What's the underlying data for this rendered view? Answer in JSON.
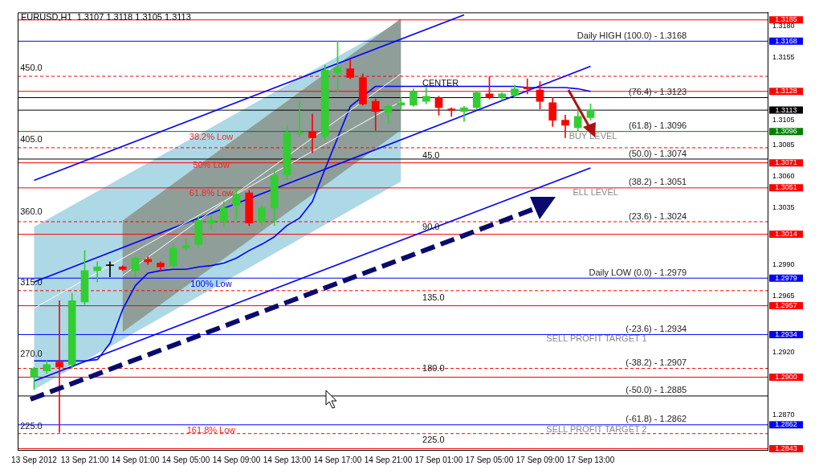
{
  "chart_data": {
    "type": "candlestick",
    "title": "EURUSD,H1  1.3107 1.3118 1.3105 1.3113",
    "categories": [
      "13 Sep 2012",
      null,
      null,
      null,
      "13 Sep 21:00",
      null,
      null,
      null,
      "14 Sep 01:00",
      null,
      null,
      null,
      "14 Sep 05:00",
      null,
      null,
      null,
      "14 Sep 09:00",
      null,
      null,
      null,
      "14 Sep 13:00",
      null,
      null,
      null,
      "14 Sep 17:00",
      null,
      null,
      null,
      "14 Sep 21:00",
      null,
      null,
      null,
      "17 Sep 01:00",
      null,
      null,
      null,
      "17 Sep 05:00",
      null,
      null,
      null,
      "17 Sep 09:00",
      null,
      null,
      null,
      "17 Sep 13:00"
    ],
    "ohlc": [
      [
        1.29,
        1.2908,
        1.289,
        1.2907
      ],
      [
        1.2905,
        1.2913,
        1.2903,
        1.291
      ],
      [
        1.2912,
        1.2961,
        1.2856,
        1.2908
      ],
      [
        1.291,
        1.2967,
        1.2907,
        1.2961
      ],
      [
        1.296,
        1.3001,
        1.2958,
        1.2985
      ],
      [
        1.2985,
        1.2992,
        1.2976,
        1.2988
      ],
      [
        1.2989,
        1.2992,
        1.298,
        1.2989
      ],
      [
        1.2988,
        1.2989,
        1.2985,
        1.2986
      ],
      [
        1.2985,
        1.2996,
        1.298,
        1.2995
      ],
      [
        1.2994,
        1.2996,
        1.299,
        1.2992
      ],
      [
        1.2991,
        1.2992,
        1.2985,
        1.2988
      ],
      [
        1.2989,
        1.3006,
        1.2988,
        1.3003
      ],
      [
        1.3003,
        1.301,
        1.3001,
        1.3005
      ],
      [
        1.3006,
        1.3028,
        1.3004,
        1.3025
      ],
      [
        1.3023,
        1.303,
        1.3018,
        1.3025
      ],
      [
        1.3024,
        1.304,
        1.302,
        1.3035
      ],
      [
        1.3037,
        1.3051,
        1.3026,
        1.3046
      ],
      [
        1.3047,
        1.3049,
        1.3021,
        1.3023
      ],
      [
        1.3024,
        1.3037,
        1.3021,
        1.3035
      ],
      [
        1.3035,
        1.3066,
        1.3021,
        1.3061
      ],
      [
        1.3061,
        1.3101,
        1.3057,
        1.3095
      ],
      [
        1.3094,
        1.312,
        1.3092,
        1.3095
      ],
      [
        1.3096,
        1.311,
        1.3079,
        1.3091
      ],
      [
        1.3092,
        1.3149,
        1.3089,
        1.3145
      ],
      [
        1.3143,
        1.3168,
        1.3128,
        1.3147
      ],
      [
        1.3146,
        1.3153,
        1.3138,
        1.3139
      ],
      [
        1.3139,
        1.3142,
        1.3117,
        1.3118
      ],
      [
        1.312,
        1.3122,
        1.3097,
        1.3112
      ],
      [
        1.3111,
        1.3117,
        1.3102,
        1.3116
      ],
      [
        1.3117,
        1.3123,
        1.3113,
        1.3119
      ],
      [
        1.3117,
        1.313,
        1.3116,
        1.3128
      ],
      [
        1.312,
        1.3131,
        1.3118,
        1.3124
      ],
      [
        1.3123,
        1.3124,
        1.3109,
        1.3115
      ],
      [
        1.3114,
        1.3115,
        1.3108,
        1.3113
      ],
      [
        1.3112,
        1.3116,
        1.3104,
        1.3115
      ],
      [
        1.3115,
        1.3128,
        1.3114,
        1.3127
      ],
      [
        1.3126,
        1.314,
        1.3122,
        1.3123
      ],
      [
        1.3123,
        1.3127,
        1.3121,
        1.3126
      ],
      [
        1.3125,
        1.3133,
        1.3123,
        1.313
      ],
      [
        1.3131,
        1.3138,
        1.3126,
        1.313
      ],
      [
        1.3129,
        1.3136,
        1.3114,
        1.312
      ],
      [
        1.3119,
        1.3123,
        1.31,
        1.3105
      ],
      [
        1.3105,
        1.3109,
        1.3091,
        1.3101
      ],
      [
        1.3099,
        1.3114,
        1.3096,
        1.3108
      ],
      [
        1.3107,
        1.3118,
        1.3105,
        1.3113
      ]
    ],
    "colors": [
      "#32cd32",
      "#32cd32",
      "#ff0000",
      "#32cd32",
      "#32cd32",
      "#32cd32",
      "#000000",
      "#ff0000",
      "#32cd32",
      "#ff0000",
      "#ff0000",
      "#32cd32",
      "#32cd32",
      "#32cd32",
      "#32cd32",
      "#32cd32",
      "#32cd32",
      "#ff0000",
      "#32cd32",
      "#32cd32",
      "#32cd32",
      "#32cd32",
      "#ff0000",
      "#32cd32",
      "#32cd32",
      "#ff0000",
      "#ff0000",
      "#ff0000",
      "#32cd32",
      "#32cd32",
      "#32cd32",
      "#32cd32",
      "#ff0000",
      "#ff0000",
      "#32cd32",
      "#32cd32",
      "#ff0000",
      "#32cd32",
      "#32cd32",
      "#ff0000",
      "#ff0000",
      "#ff0000",
      "#ff0000",
      "#32cd32",
      "#32cd32"
    ],
    "series": [
      {
        "type": "line",
        "color": "#ffffff",
        "values": [
          1.2955,
          null,
          null,
          null,
          null,
          null,
          null,
          null,
          null,
          null,
          null,
          null,
          null,
          null,
          null,
          null,
          null,
          null,
          null,
          null,
          null,
          null,
          null,
          null,
          null,
          null,
          null,
          null,
          null,
          1.312,
          null,
          null,
          null,
          null,
          null,
          null,
          null,
          null,
          null,
          null,
          null,
          null,
          null,
          null,
          null
        ],
        "lower": [
          1.289,
          null,
          null,
          null,
          null,
          null,
          null,
          null,
          null,
          null,
          null,
          null,
          null,
          null,
          null,
          null,
          null,
          null,
          null,
          null,
          null,
          null,
          null,
          null,
          null,
          null,
          null,
          null,
          null,
          1.3056,
          null,
          null,
          null,
          null,
          null,
          null,
          null,
          null,
          null,
          null,
          null,
          null,
          null,
          null,
          null
        ],
        "upper": [
          1.302,
          null,
          null,
          null,
          null,
          null,
          null,
          null,
          null,
          null,
          null,
          null,
          null,
          null,
          null,
          null,
          null,
          null,
          null,
          null,
          null,
          null,
          null,
          null,
          null,
          null,
          null,
          null,
          null,
          1.3184,
          null,
          null,
          null,
          null,
          null,
          null,
          null,
          null,
          null,
          null,
          null,
          null,
          null,
          null,
          null
        ]
      },
      {
        "type": "line",
        "color": "#ffffff",
        "values": [
          null,
          null,
          null,
          null,
          null,
          null,
          null,
          1.2981,
          null,
          null,
          null,
          null,
          null,
          null,
          null,
          null,
          null,
          null,
          null,
          null,
          null,
          null,
          null,
          null,
          null,
          null,
          null,
          null,
          null,
          1.3142,
          null,
          null,
          null,
          null,
          null,
          null,
          null,
          null,
          null,
          null,
          null,
          null,
          null,
          null,
          null
        ],
        "lower": [
          null,
          null,
          null,
          null,
          null,
          null,
          null,
          1.2936,
          null,
          null,
          null,
          null,
          null,
          null,
          null,
          null,
          null,
          null,
          null,
          null,
          null,
          null,
          null,
          null,
          null,
          null,
          null,
          null,
          null,
          1.3097,
          null,
          null,
          null,
          null,
          null,
          null,
          null,
          null,
          null,
          null,
          null,
          null,
          null,
          null,
          null
        ],
        "upper": [
          null,
          null,
          null,
          null,
          null,
          null,
          null,
          1.3025,
          null,
          null,
          null,
          null,
          null,
          null,
          null,
          null,
          null,
          null,
          null,
          null,
          null,
          null,
          null,
          null,
          null,
          null,
          null,
          null,
          null,
          1.3186,
          null,
          null,
          null,
          null,
          null,
          null,
          null,
          null,
          null,
          null,
          null,
          null,
          null,
          null,
          null
        ]
      },
      {
        "type": "line",
        "color": "#0000ff",
        "values": [
          1.3057,
          null,
          null,
          null,
          null,
          null,
          null,
          null,
          null,
          null,
          null,
          null,
          null,
          null,
          null,
          null,
          null,
          null,
          null,
          null,
          null,
          null,
          null,
          null,
          null,
          null,
          null,
          null,
          null,
          null,
          null,
          null,
          null,
          null,
          1.3189,
          null,
          null,
          null,
          null,
          null,
          null,
          null,
          null,
          null,
          null
        ]
      },
      {
        "type": "line",
        "color": "#0000ff",
        "values": [
          1.2976,
          null,
          null,
          null,
          null,
          null,
          null,
          null,
          null,
          null,
          null,
          null,
          null,
          null,
          null,
          null,
          null,
          null,
          null,
          null,
          null,
          null,
          null,
          null,
          null,
          null,
          null,
          null,
          null,
          null,
          null,
          null,
          null,
          null,
          null,
          null,
          null,
          null,
          null,
          null,
          null,
          null,
          null,
          null,
          1.3148
        ]
      },
      {
        "type": "line",
        "color": "#0000ff",
        "values": [
          1.2897,
          null,
          null,
          null,
          null,
          null,
          null,
          null,
          null,
          null,
          null,
          null,
          null,
          null,
          null,
          null,
          null,
          null,
          null,
          null,
          null,
          null,
          null,
          null,
          null,
          null,
          null,
          null,
          null,
          null,
          null,
          null,
          null,
          null,
          null,
          null,
          null,
          null,
          null,
          null,
          null,
          null,
          null,
          null,
          1.3067
        ]
      },
      {
        "type": "line",
        "color": "#0000ff",
        "values": [
          1.2913,
          1.2913,
          1.2913,
          null,
          1.2913,
          1.2914,
          1.2927,
          1.2954,
          1.2973,
          1.2983,
          1.2985,
          1.2986,
          1.2986,
          1.2988,
          1.2989,
          1.2991,
          1.2995,
          1.3001,
          1.3006,
          1.3012,
          1.3021,
          1.3027,
          1.304,
          1.3066,
          1.3091,
          1.3116,
          null,
          1.3132,
          1.3132,
          1.3132,
          1.3132,
          1.3132,
          1.3132,
          1.3132,
          1.3132,
          1.3132,
          1.3132,
          1.3132,
          1.3132,
          1.3131,
          1.3131,
          1.3131,
          1.3131,
          1.313,
          1.3128
        ]
      }
    ],
    "ylim": [
      1.2842,
      1.3191
    ],
    "yticks": [
      {
        "value": 1.318,
        "label": "1.3180"
      },
      {
        "value": 1.3155,
        "label": "1.3155"
      },
      {
        "value": 1.3105,
        "label": "1.3105"
      },
      {
        "value": 1.3085,
        "label": "1.3085"
      },
      {
        "value": 1.306,
        "label": "1.3060"
      },
      {
        "value": 1.3035,
        "label": "1.3035"
      },
      {
        "value": 1.299,
        "label": "1.2990"
      },
      {
        "value": 1.2965,
        "label": "1.2965"
      },
      {
        "value": 1.292,
        "label": "1.2920"
      },
      {
        "value": 1.287,
        "label": "1.2870"
      }
    ],
    "ref_lines": [
      {
        "axis": "y",
        "value": 1.3185,
        "label": "1.3185",
        "color": "#ff0000"
      },
      {
        "axis": "y",
        "value": 1.3168,
        "label": "1.3168",
        "color": "#0000ff"
      },
      {
        "axis": "y",
        "value": 1.314,
        "color": "#ff0000",
        "line_style": "dashed"
      },
      {
        "axis": "y",
        "value": 1.3128,
        "label": "1.3128",
        "color": "#ff0000"
      },
      {
        "axis": "y",
        "value": 1.3123,
        "color": "#000000"
      },
      {
        "axis": "y",
        "value": 1.3113,
        "label": "1.3113",
        "color": "#000000"
      },
      {
        "axis": "y",
        "value": 1.3096,
        "label": "1.3096",
        "color": "#008000"
      },
      {
        "axis": "y",
        "value": 1.3083,
        "color": "#ff0000",
        "line_style": "dashed"
      },
      {
        "axis": "y",
        "value": 1.3074,
        "color": "#000000"
      },
      {
        "axis": "y",
        "value": 1.3071,
        "label": "1.3071",
        "color": "#ff0000"
      },
      {
        "axis": "y",
        "value": 1.3051,
        "label": "1.3051",
        "color": "#ff0000"
      },
      {
        "axis": "y",
        "value": 1.3024,
        "color": "#ff0000",
        "line_style": "dashed"
      },
      {
        "axis": "y",
        "value": 1.3014,
        "label": "1.3014",
        "color": "#ff0000"
      },
      {
        "axis": "y",
        "value": 1.2979,
        "label": "1.2979",
        "color": "#0000ff"
      },
      {
        "axis": "y",
        "value": 1.2969,
        "color": "#ff0000",
        "line_style": "dashed"
      },
      {
        "axis": "y",
        "value": 1.2957,
        "label": "1.2957",
        "color": "#ff0000"
      },
      {
        "axis": "y",
        "value": 1.2934,
        "label": "1.2934",
        "color": "#0000ff"
      },
      {
        "axis": "y",
        "value": 1.2907,
        "color": "#ff0000",
        "line_style": "dashed"
      },
      {
        "axis": "y",
        "value": 1.29,
        "label": "1.2900",
        "color": "#ff0000"
      },
      {
        "axis": "y",
        "value": 1.2885,
        "color": "#000000"
      },
      {
        "axis": "y",
        "value": 1.2862,
        "label": "1.2862",
        "color": "#0000ff"
      },
      {
        "axis": "y",
        "value": 1.2855,
        "color": "#ff0000",
        "line_style": "dashed"
      },
      {
        "axis": "y",
        "value": 1.2843,
        "label": "1.2843",
        "color": "#ff0000"
      }
    ],
    "annotations": [
      {
        "text": "Daily HIGH (100.0) - 1.3168",
        "y": 1.3168
      },
      {
        "text": "(76.4) - 1.3123",
        "y": 1.3123
      },
      {
        "text": "(61.8) - 1.3096",
        "y": 1.3096
      },
      {
        "text": "(50.0) - 1.3074",
        "y": 1.3074
      },
      {
        "text": "(38.2) - 1.3051",
        "y": 1.3051
      },
      {
        "text": "(23.6) - 1.3024",
        "y": 1.3024
      },
      {
        "text": "Daily LOW (0.0) - 1.2979",
        "y": 1.2979
      },
      {
        "text": "(-23.6) - 1.2934",
        "y": 1.2934
      },
      {
        "text": "(-38.2) - 1.2907",
        "y": 1.2907
      },
      {
        "text": "(-50.0) - 1.2885",
        "y": 1.2885
      },
      {
        "text": "(-61.8) - 1.2862",
        "y": 1.2862
      },
      "38.2% Low",
      "50% Low",
      "61.8% Low",
      "100% Low",
      "161.8% Low",
      "450.0",
      "405.0",
      "360.0",
      "315.0",
      "270.0",
      "225.0",
      "45.0",
      "90.0",
      "135.0",
      "180.0",
      "225.0",
      "CENTER",
      "BUY LEVEL",
      "ELL LEVEL",
      "SELL PROFIT TARGET 1",
      "SELL PROFIT TARGET 2"
    ]
  }
}
